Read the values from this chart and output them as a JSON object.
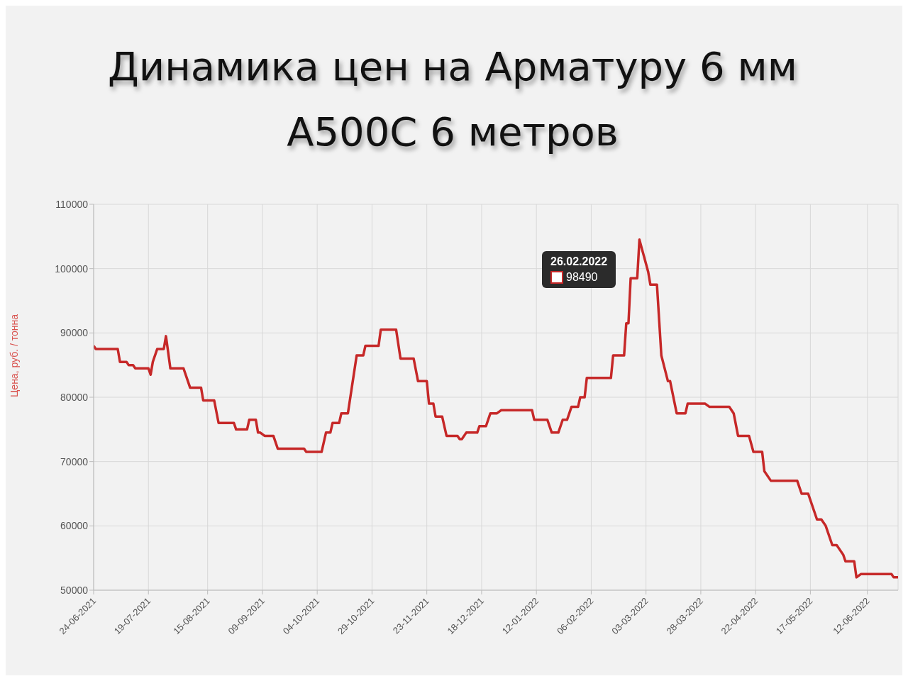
{
  "chart_data": {
    "type": "line",
    "title": "Динамика цен на Арматуру 6 мм А500С 6 метров",
    "ylabel": "Цена, руб. / тонна",
    "annotations": [
      "26.02.2022",
      "98490"
    ],
    "x": [
      "2021-06-24",
      "2021-06-25",
      "2021-07-05",
      "2021-07-06",
      "2021-07-09",
      "2021-07-10",
      "2021-07-12",
      "2021-07-13",
      "2021-07-19",
      "2021-07-20",
      "2021-07-21",
      "2021-07-23",
      "2021-07-26",
      "2021-07-27",
      "2021-07-29",
      "2021-08-04",
      "2021-08-07",
      "2021-08-12",
      "2021-08-13",
      "2021-08-18",
      "2021-08-20",
      "2021-08-27",
      "2021-08-28",
      "2021-09-02",
      "2021-09-03",
      "2021-09-06",
      "2021-09-07",
      "2021-09-08",
      "2021-09-10",
      "2021-09-14",
      "2021-09-16",
      "2021-09-28",
      "2021-09-29",
      "2021-10-06",
      "2021-10-08",
      "2021-10-10",
      "2021-10-11",
      "2021-10-14",
      "2021-10-15",
      "2021-10-18",
      "2021-10-20",
      "2021-10-22",
      "2021-10-25",
      "2021-10-26",
      "2021-11-01",
      "2021-11-02",
      "2021-11-09",
      "2021-11-11",
      "2021-11-17",
      "2021-11-19",
      "2021-11-23",
      "2021-11-24",
      "2021-11-26",
      "2021-11-27",
      "2021-11-30",
      "2021-12-02",
      "2021-12-07",
      "2021-12-08",
      "2021-12-09",
      "2021-12-11",
      "2021-12-16",
      "2021-12-17",
      "2021-12-20",
      "2021-12-22",
      "2021-12-25",
      "2021-12-27",
      "2022-01-10",
      "2022-01-11",
      "2022-01-17",
      "2022-01-19",
      "2022-01-22",
      "2022-01-24",
      "2022-01-26",
      "2022-01-28",
      "2022-01-31",
      "2022-02-01",
      "2022-02-03",
      "2022-02-04",
      "2022-02-15",
      "2022-02-16",
      "2022-02-21",
      "2022-02-22",
      "2022-02-23",
      "2022-02-24",
      "2022-02-27",
      "2022-02-28",
      "2022-03-04",
      "2022-03-05",
      "2022-03-08",
      "2022-03-10",
      "2022-03-13",
      "2022-03-14",
      "2022-03-17",
      "2022-03-21",
      "2022-03-22",
      "2022-03-30",
      "2022-04-01",
      "2022-04-10",
      "2022-04-12",
      "2022-04-14",
      "2022-04-19",
      "2022-04-21",
      "2022-04-25",
      "2022-04-26",
      "2022-04-29",
      "2022-05-11",
      "2022-05-13",
      "2022-05-16",
      "2022-05-20",
      "2022-05-22",
      "2022-05-24",
      "2022-05-27",
      "2022-05-29",
      "2022-06-01",
      "2022-06-02",
      "2022-06-06",
      "2022-06-07",
      "2022-06-09",
      "2022-06-23",
      "2022-06-24",
      "2022-06-26"
    ],
    "series": [
      {
        "color": "#c62828",
        "values": [
          88000,
          87500,
          87500,
          85500,
          85500,
          85000,
          85000,
          84500,
          84500,
          83500,
          85500,
          87500,
          87500,
          89500,
          84500,
          84500,
          81500,
          81500,
          79500,
          79500,
          76000,
          76000,
          75000,
          75000,
          76500,
          76500,
          74500,
          74500,
          74000,
          74000,
          72000,
          72000,
          71500,
          71500,
          74500,
          74500,
          76000,
          76000,
          77500,
          77500,
          82000,
          86500,
          86500,
          88000,
          88000,
          90500,
          90500,
          86000,
          86000,
          82500,
          82500,
          79000,
          79000,
          77000,
          77000,
          74000,
          74000,
          73500,
          73500,
          74500,
          74500,
          75500,
          75500,
          77500,
          77500,
          78000,
          78000,
          76500,
          76500,
          74500,
          74500,
          76500,
          76500,
          78500,
          78500,
          80000,
          80000,
          83000,
          83000,
          86500,
          86500,
          91500,
          91500,
          98500,
          98500,
          104500,
          99500,
          97500,
          97500,
          86500,
          82500,
          82500,
          77500,
          77500,
          79000,
          79000,
          78500,
          78500,
          77500,
          74000,
          74000,
          71500,
          71500,
          68500,
          67000,
          67000,
          65000,
          65000,
          61000,
          61000,
          60000,
          57000,
          57000,
          55500,
          54500,
          54500,
          52000,
          52500,
          52500,
          52000,
          52000
        ]
      }
    ],
    "xlim": [
      "2021-06-24",
      "2022-06-26"
    ],
    "xticks": [
      {
        "value": "2021-06-24",
        "label": "24-06-2021"
      },
      {
        "value": "2021-07-19",
        "label": "19-07-2021"
      },
      {
        "value": "2021-08-15",
        "label": "15-08-2021"
      },
      {
        "value": "2021-09-09",
        "label": "09-09-2021"
      },
      {
        "value": "2021-10-04",
        "label": "04-10-2021"
      },
      {
        "value": "2021-10-29",
        "label": "29-10-2021"
      },
      {
        "value": "2021-11-23",
        "label": "23-11-2021"
      },
      {
        "value": "2021-12-18",
        "label": "18-12-2021"
      },
      {
        "value": "2022-01-12",
        "label": "12-01-2022"
      },
      {
        "value": "2022-02-06",
        "label": "06-02-2022"
      },
      {
        "value": "2022-03-03",
        "label": "03-03-2022"
      },
      {
        "value": "2022-03-28",
        "label": "28-03-2022"
      },
      {
        "value": "2022-04-22",
        "label": "22-04-2022"
      },
      {
        "value": "2022-05-17",
        "label": "17-05-2022"
      },
      {
        "value": "2022-06-12",
        "label": "12-06-2022"
      }
    ],
    "ylim": [
      50000,
      110000
    ],
    "yticks": [
      50000,
      60000,
      70000,
      80000,
      90000,
      100000,
      110000
    ],
    "grid": true,
    "legend": false,
    "marker": "none",
    "line_style": "solid"
  }
}
